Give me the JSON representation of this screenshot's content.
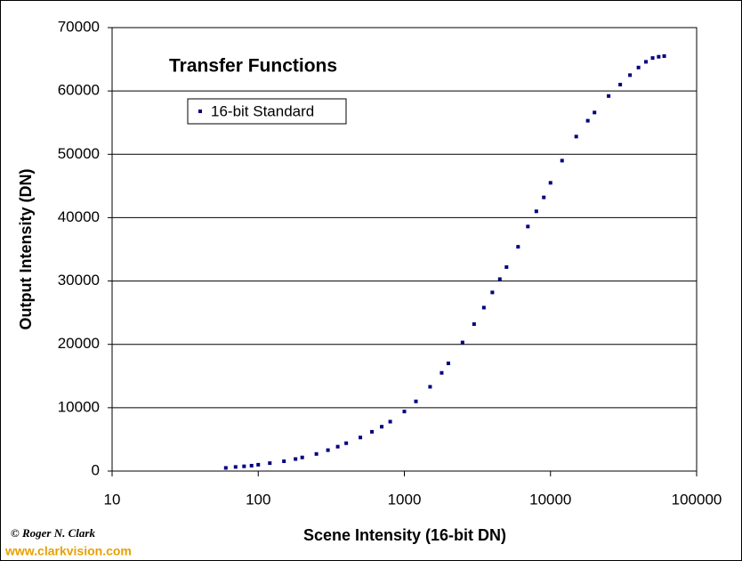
{
  "chart_data": {
    "type": "scatter",
    "title": "Transfer Functions",
    "xlabel": "Scene Intensity (16-bit DN)",
    "ylabel": "Output Intensity (DN)",
    "xscale": "log",
    "xlim": [
      10,
      100000
    ],
    "xticks": [
      10,
      100,
      1000,
      10000,
      100000
    ],
    "ylim": [
      0,
      70000
    ],
    "yticks": [
      0,
      10000,
      20000,
      30000,
      40000,
      50000,
      60000,
      70000
    ],
    "grid": true,
    "legend": "upper left",
    "series": [
      {
        "name": "16-bit Standard",
        "color": "#000080",
        "x": [
          60,
          70,
          80,
          90,
          100,
          120,
          150,
          180,
          200,
          250,
          300,
          350,
          400,
          500,
          600,
          700,
          800,
          1000,
          1200,
          1500,
          1800,
          2000,
          2500,
          3000,
          3500,
          4000,
          4500,
          5000,
          6000,
          7000,
          8000,
          9000,
          10000,
          12000,
          15000,
          18000,
          20000,
          25000,
          30000,
          35000,
          40000,
          45000,
          50000,
          55000,
          60000
        ],
        "y": [
          500,
          650,
          750,
          850,
          1000,
          1250,
          1550,
          1900,
          2150,
          2700,
          3300,
          3850,
          4400,
          5300,
          6200,
          7000,
          7800,
          9400,
          11000,
          13300,
          15500,
          17000,
          20300,
          23200,
          25800,
          28200,
          30300,
          32200,
          35400,
          38600,
          41000,
          43200,
          45500,
          49000,
          52800,
          55300,
          56600,
          59200,
          61000,
          62500,
          63700,
          64600,
          65200,
          65400,
          65500
        ]
      }
    ]
  },
  "footer": {
    "credit": "© Roger N. Clark",
    "website": "www.clarkvision.com"
  }
}
